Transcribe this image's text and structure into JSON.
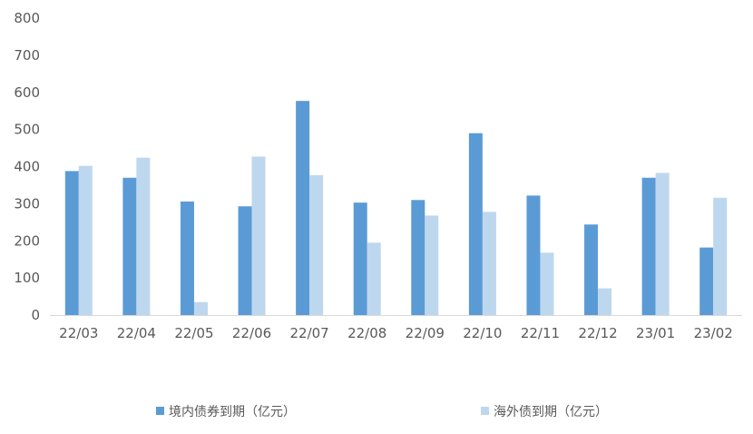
{
  "chart_data": {
    "type": "bar",
    "title": "",
    "xlabel": "",
    "ylabel": "",
    "ylim": [
      0,
      800
    ],
    "yticks": [
      0,
      100,
      200,
      300,
      400,
      500,
      600,
      700,
      800
    ],
    "grid": false,
    "legend_position": "bottom",
    "categories": [
      "22/03",
      "22/04",
      "22/05",
      "22/06",
      "22/07",
      "22/08",
      "22/09",
      "22/10",
      "22/11",
      "22/12",
      "23/01",
      "23/02"
    ],
    "series": [
      {
        "name": "境内债券到期（亿元）",
        "color": "#5B9BD5",
        "values": [
          388,
          370,
          306,
          293,
          577,
          303,
          310,
          490,
          322,
          244,
          370,
          182
        ]
      },
      {
        "name": "海外债到期（亿元）",
        "color": "#BDD7EE",
        "values": [
          402,
          424,
          35,
          427,
          377,
          195,
          268,
          278,
          168,
          72,
          383,
          316
        ]
      }
    ]
  }
}
